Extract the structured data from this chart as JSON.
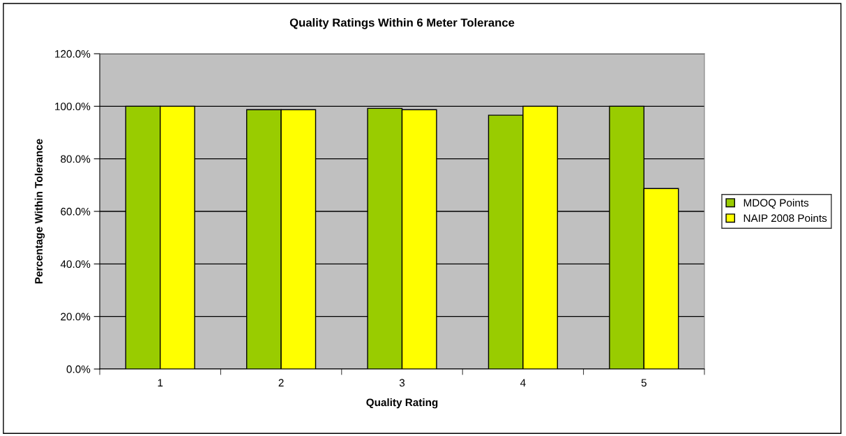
{
  "chart_data": {
    "type": "bar",
    "title": "Quality Ratings Within 6 Meter Tolerance",
    "xlabel": "Quality Rating",
    "ylabel": "Percentage Within Tolerance",
    "categories": [
      "1",
      "2",
      "3",
      "4",
      "5"
    ],
    "series": [
      {
        "name": "MDOQ Points",
        "color": "#99cc00",
        "values": [
          100.0,
          98.7,
          99.2,
          96.6,
          100.0
        ]
      },
      {
        "name": "NAIP 2008 Points",
        "color": "#ffff00",
        "values": [
          100.0,
          98.7,
          98.7,
          100.0,
          68.7
        ]
      }
    ],
    "ylim": [
      0,
      120
    ],
    "yticks": [
      {
        "value": 0,
        "label": "0.0%"
      },
      {
        "value": 20,
        "label": "20.0%"
      },
      {
        "value": 40,
        "label": "40.0%"
      },
      {
        "value": 60,
        "label": "60.0%"
      },
      {
        "value": 80,
        "label": "80.0%"
      },
      {
        "value": 100,
        "label": "100.0%"
      },
      {
        "value": 120,
        "label": "120.0%"
      }
    ],
    "grid": "y",
    "legend": "right"
  }
}
